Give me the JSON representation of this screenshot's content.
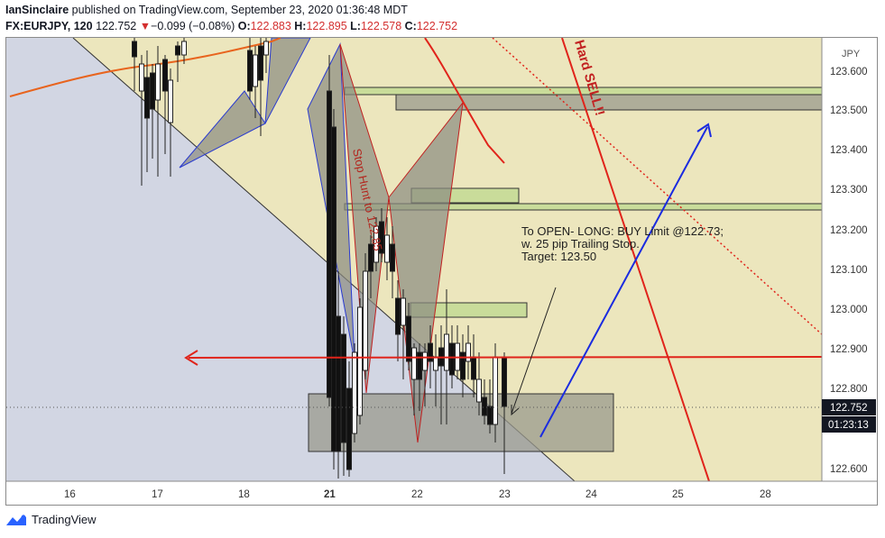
{
  "header": {
    "author": "IanSinclaire",
    "published_text": " published on TradingView.com, September 23, 2020 01:36:48 MDT",
    "symbol": "FX:EURJPY, 120",
    "last": "122.752",
    "change_arrow": "▼",
    "change": "−0.099 (−0.08%)",
    "o_label": "O:",
    "o_value": "122.883",
    "h_label": "H:",
    "h_value": "122.895",
    "l_label": "L:",
    "l_value": "122.578",
    "c_label": "C:",
    "c_value": "122.752"
  },
  "price_axis": {
    "currency": "JPY",
    "ticks": [
      "123.600",
      "123.500",
      "123.400",
      "123.300",
      "123.200",
      "123.100",
      "123.000",
      "122.900",
      "122.800",
      "122.600"
    ],
    "current_price": "122.752",
    "countdown": "01:23:13"
  },
  "time_axis": {
    "ticks": [
      "16",
      "17",
      "18",
      "21",
      "22",
      "23",
      "24",
      "25",
      "28"
    ]
  },
  "annotations": {
    "trade_note_line1": "To OPEN- LONG: BUY Limit @122.73;",
    "trade_note_line2": "w. 25 pip Trailing Stop.",
    "trade_note_line3": "Target: 123.50",
    "stop_hunt": "Stop Hunt to 122.85",
    "hard_sell": "Hard SELL!!"
  },
  "footer": {
    "brand": "TradingView"
  },
  "colors": {
    "background_zone": "#ece6bd",
    "left_zone": "#d2d6e3",
    "red_line": "#e0241b",
    "blue_arrow": "#1a2be0",
    "ma_line": "#e8641e",
    "pattern_fill": "#8a8a80",
    "box_green": "#c9dc9a"
  }
}
